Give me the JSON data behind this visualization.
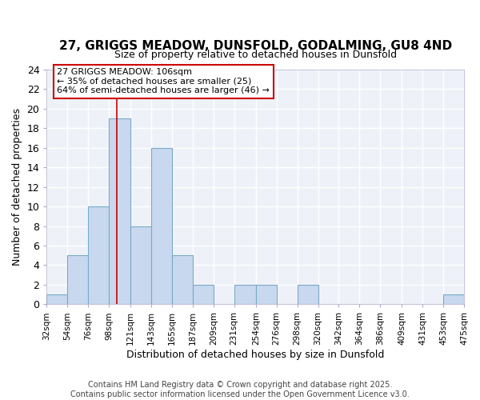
{
  "title": "27, GRIGGS MEADOW, DUNSFOLD, GODALMING, GU8 4ND",
  "subtitle": "Size of property relative to detached houses in Dunsfold",
  "xlabel": "Distribution of detached houses by size in Dunsfold",
  "ylabel": "Number of detached properties",
  "bar_color": "#c8d8ee",
  "bar_edge_color": "#7aaac8",
  "background_color": "#eef2f8",
  "grid_color": "#ffffff",
  "fig_facecolor": "#ffffff",
  "bin_edges": [
    32,
    54,
    76,
    98,
    121,
    143,
    165,
    187,
    209,
    231,
    254,
    276,
    298,
    320,
    342,
    364,
    386,
    409,
    431,
    453,
    475
  ],
  "bar_heights": [
    1,
    5,
    10,
    19,
    8,
    16,
    5,
    2,
    0,
    2,
    2,
    0,
    2,
    0,
    0,
    0,
    0,
    0,
    0,
    1
  ],
  "tick_labels": [
    "32sqm",
    "54sqm",
    "76sqm",
    "98sqm",
    "121sqm",
    "143sqm",
    "165sqm",
    "187sqm",
    "209sqm",
    "231sqm",
    "254sqm",
    "276sqm",
    "298sqm",
    "320sqm",
    "342sqm",
    "364sqm",
    "386sqm",
    "409sqm",
    "431sqm",
    "453sqm",
    "475sqm"
  ],
  "ylim": [
    0,
    24
  ],
  "yticks": [
    0,
    2,
    4,
    6,
    8,
    10,
    12,
    14,
    16,
    18,
    20,
    22,
    24
  ],
  "property_line_x": 106,
  "annotation_text": "27 GRIGGS MEADOW: 106sqm\n← 35% of detached houses are smaller (25)\n64% of semi-detached houses are larger (46) →",
  "annotation_box_color": "#ffffff",
  "annotation_box_edge": "#cc0000",
  "red_line_color": "#cc0000",
  "footer_text": "Contains HM Land Registry data © Crown copyright and database right 2025.\nContains public sector information licensed under the Open Government Licence v3.0.",
  "title_fontsize": 11,
  "subtitle_fontsize": 9,
  "ylabel_fontsize": 9,
  "xlabel_fontsize": 9,
  "tick_fontsize": 7.5,
  "footer_fontsize": 7
}
